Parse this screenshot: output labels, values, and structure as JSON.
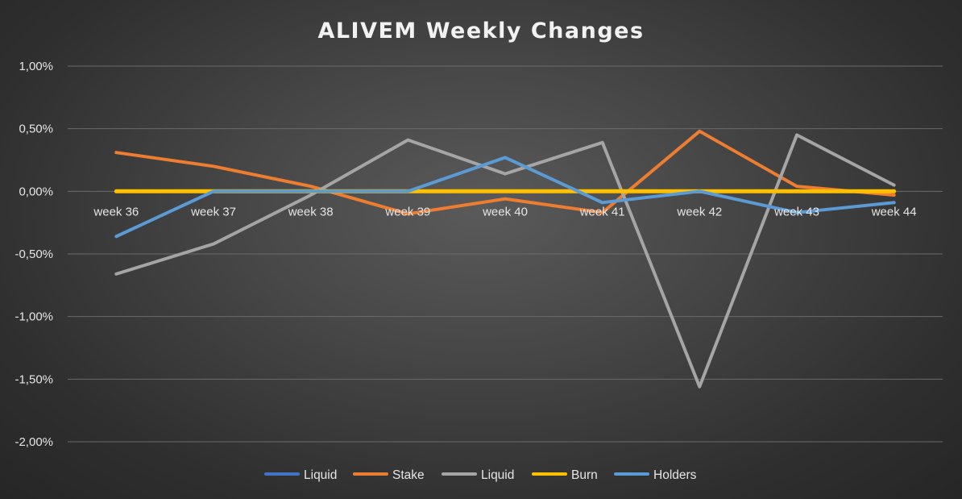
{
  "chart_data": {
    "type": "line",
    "title": "ALIVEM Weekly Changes",
    "xlabel": "",
    "ylabel": "",
    "categories": [
      "week 36",
      "week 37",
      "week 38",
      "week 39",
      "week 40",
      "week 41",
      "week 42",
      "week 43",
      "week 44"
    ],
    "ylim": [
      -2.0,
      1.0
    ],
    "yticks": [
      1.0,
      0.5,
      0.0,
      -0.5,
      -1.0,
      -1.5,
      -2.0
    ],
    "ytick_labels": [
      "1,00%",
      "0,50%",
      "0,00%",
      "-0,50%",
      "-1,00%",
      "-1,50%",
      "-2,00%"
    ],
    "grid": "horizontal",
    "legend_position": "bottom",
    "series": [
      {
        "name": "Liquid",
        "color": "#4472c4",
        "values": [
          0,
          0,
          0,
          0,
          0,
          0,
          0,
          0,
          0
        ]
      },
      {
        "name": "Stake",
        "color": "#ed7d31",
        "values": [
          0.31,
          0.2,
          0.04,
          -0.18,
          -0.06,
          -0.17,
          0.48,
          0.04,
          -0.03
        ]
      },
      {
        "name": "Liquid",
        "color": "#a5a5a5",
        "values": [
          -0.66,
          -0.42,
          -0.03,
          0.41,
          0.14,
          0.39,
          -1.56,
          0.45,
          0.05
        ]
      },
      {
        "name": "Burn",
        "color": "#ffc000",
        "values": [
          0,
          0,
          0,
          0,
          0,
          0,
          0,
          0,
          0
        ]
      },
      {
        "name": "Holders",
        "color": "#5b9bd5",
        "values": [
          -0.36,
          0,
          0,
          0,
          0.27,
          -0.09,
          0,
          -0.17,
          -0.09
        ]
      }
    ]
  }
}
